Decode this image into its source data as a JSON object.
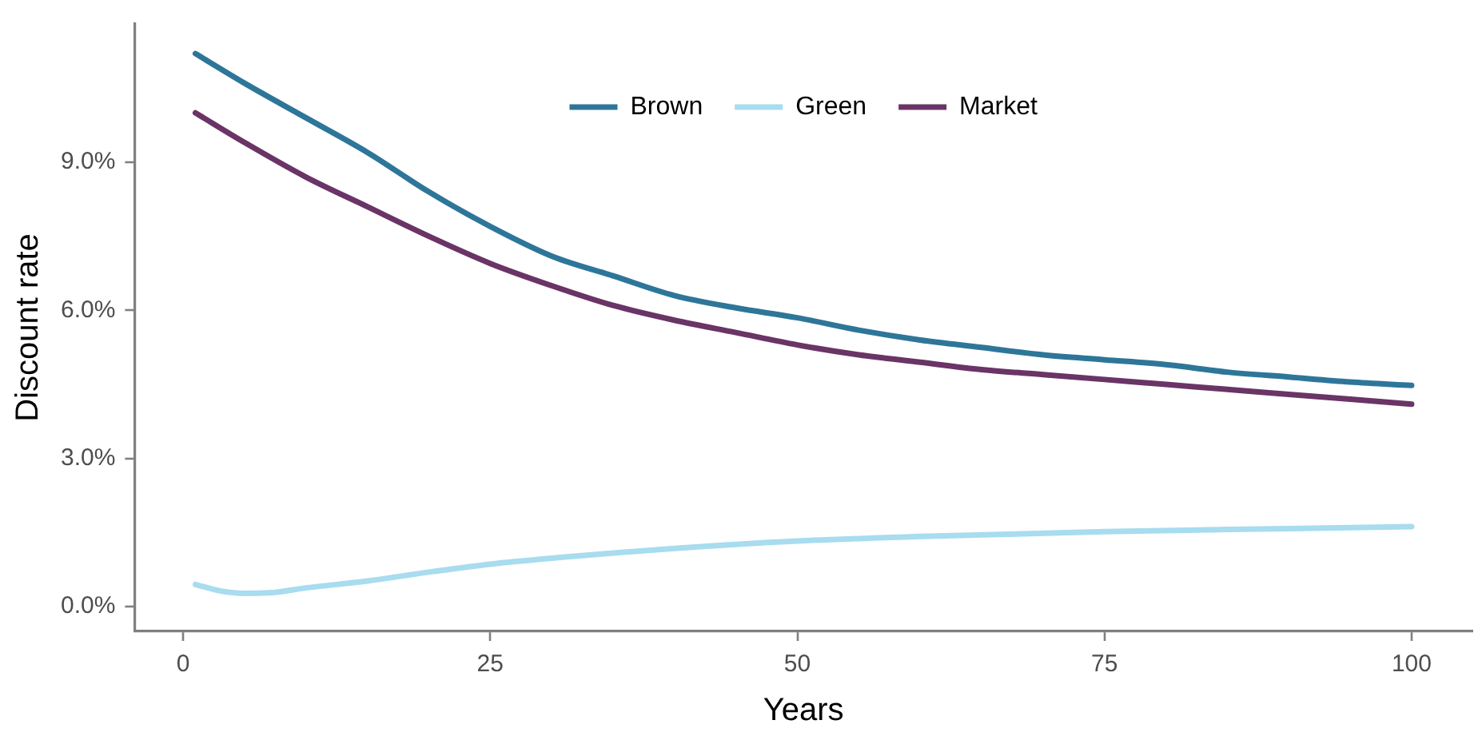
{
  "chart_data": {
    "type": "line",
    "xlabel": "Years",
    "ylabel": "Discount rate",
    "legend": "top",
    "grid": false,
    "marker": "none",
    "line_style": "solid",
    "xlim": [
      -3.95,
      104.95
    ],
    "xticks": [
      0,
      25,
      50,
      75,
      100
    ],
    "ylim": [
      -0.5,
      11.8
    ],
    "yticks": [
      {
        "value": 0,
        "label": "0.0%"
      },
      {
        "value": 3,
        "label": "3.0%"
      },
      {
        "value": 6,
        "label": "6.0%"
      },
      {
        "value": 9,
        "label": "9.0%"
      }
    ],
    "series": [
      {
        "name": "Brown",
        "color": "#2e7699",
        "x": [
          1,
          5,
          10,
          15,
          20,
          25,
          30,
          35,
          40,
          45,
          50,
          55,
          60,
          65,
          70,
          75,
          80,
          85,
          90,
          95,
          100
        ],
        "values": [
          11.2,
          10.6,
          9.9,
          9.2,
          8.4,
          7.7,
          7.1,
          6.7,
          6.3,
          6.05,
          5.85,
          5.6,
          5.4,
          5.25,
          5.1,
          5.0,
          4.9,
          4.75,
          4.65,
          4.55,
          4.48
        ]
      },
      {
        "name": "Green",
        "color": "#a8dcef",
        "x": [
          1,
          3,
          5,
          7,
          10,
          15,
          20,
          25,
          30,
          40,
          50,
          60,
          75,
          90,
          100
        ],
        "values": [
          0.45,
          0.32,
          0.27,
          0.28,
          0.38,
          0.52,
          0.7,
          0.86,
          0.98,
          1.18,
          1.33,
          1.42,
          1.52,
          1.58,
          1.62
        ]
      },
      {
        "name": "Market",
        "color": "#6a3466",
        "x": [
          1,
          5,
          10,
          15,
          20,
          25,
          30,
          35,
          40,
          45,
          50,
          55,
          60,
          65,
          70,
          75,
          80,
          85,
          90,
          95,
          100
        ],
        "values": [
          10.0,
          9.4,
          8.7,
          8.1,
          7.5,
          6.95,
          6.5,
          6.1,
          5.8,
          5.55,
          5.3,
          5.1,
          4.95,
          4.8,
          4.7,
          4.6,
          4.5,
          4.4,
          4.3,
          4.2,
          4.1
        ]
      }
    ]
  }
}
